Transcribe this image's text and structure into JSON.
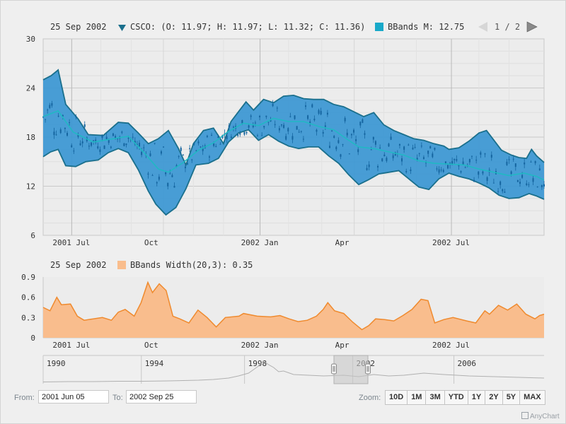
{
  "colors": {
    "band": "#3a96d2",
    "band_line": "#1a6f8c",
    "mid": "#20b8c4",
    "candle": "#1565a0",
    "width_fill": "#f9bd8d",
    "width_line": "#ef8a2e",
    "grid": "#d8d8d8",
    "nav_line": "#b0b0b0"
  },
  "pager": {
    "text": "1 / 2",
    "prev_icon": "triangle-left-icon",
    "next_icon": "triangle-right-icon"
  },
  "chart_data": [
    {
      "type": "candlestick",
      "legend": {
        "date": "25 Sep 2002",
        "ohlc": "CSCO: (O: 11.97; H: 11.97; L: 11.32; C: 11.36)",
        "bbands": "BBands M: 12.75"
      },
      "y_ticks": [
        "30",
        "24",
        "18",
        "12",
        "6"
      ],
      "ylim": [
        6,
        30
      ],
      "x_ticks": [
        "2001 Jul",
        "Oct",
        "2002 Jan",
        "Apr",
        "2002 Jul"
      ],
      "x_range": [
        "2001-06-05",
        "2002-09-25"
      ],
      "bbands_upper": [
        [
          0,
          25
        ],
        [
          0.016,
          25.5
        ],
        [
          0.03,
          26.2
        ],
        [
          0.045,
          22
        ],
        [
          0.07,
          20.2
        ],
        [
          0.09,
          18.3
        ],
        [
          0.12,
          18.2
        ],
        [
          0.15,
          19.8
        ],
        [
          0.17,
          19.7
        ],
        [
          0.19,
          18.5
        ],
        [
          0.21,
          17.2
        ],
        [
          0.23,
          17.8
        ],
        [
          0.25,
          18.8
        ],
        [
          0.27,
          16.6
        ],
        [
          0.285,
          14.6
        ],
        [
          0.3,
          17.2
        ],
        [
          0.32,
          18.8
        ],
        [
          0.34,
          19.1
        ],
        [
          0.36,
          17.2
        ],
        [
          0.375,
          19.9
        ],
        [
          0.39,
          21.1
        ],
        [
          0.405,
          22.3
        ],
        [
          0.42,
          21.3
        ],
        [
          0.44,
          22.6
        ],
        [
          0.46,
          22.2
        ],
        [
          0.48,
          23
        ],
        [
          0.5,
          23.1
        ],
        [
          0.52,
          22.7
        ],
        [
          0.54,
          22.6
        ],
        [
          0.56,
          22.6
        ],
        [
          0.58,
          22
        ],
        [
          0.6,
          21.7
        ],
        [
          0.62,
          21.1
        ],
        [
          0.64,
          20.5
        ],
        [
          0.66,
          21
        ],
        [
          0.68,
          19.5
        ],
        [
          0.7,
          18.8
        ],
        [
          0.72,
          18.3
        ],
        [
          0.74,
          17.8
        ],
        [
          0.76,
          17.6
        ],
        [
          0.78,
          17.2
        ],
        [
          0.8,
          16.9
        ],
        [
          0.81,
          16.5
        ],
        [
          0.83,
          16.7
        ],
        [
          0.85,
          17.5
        ],
        [
          0.87,
          18.5
        ],
        [
          0.885,
          18.8
        ],
        [
          0.9,
          17.6
        ],
        [
          0.915,
          16.4
        ],
        [
          0.935,
          15.8
        ],
        [
          0.95,
          15.5
        ],
        [
          0.965,
          15.4
        ],
        [
          0.975,
          16.5
        ],
        [
          0.985,
          15.7
        ],
        [
          1,
          14.9
        ]
      ],
      "bbands_lower": [
        [
          0,
          15.6
        ],
        [
          0.015,
          16.2
        ],
        [
          0.03,
          16.5
        ],
        [
          0.045,
          14.5
        ],
        [
          0.065,
          14.4
        ],
        [
          0.085,
          15
        ],
        [
          0.11,
          15.2
        ],
        [
          0.13,
          16.1
        ],
        [
          0.15,
          16.6
        ],
        [
          0.17,
          16.1
        ],
        [
          0.19,
          14
        ],
        [
          0.21,
          11.4
        ],
        [
          0.225,
          9.8
        ],
        [
          0.245,
          8.5
        ],
        [
          0.265,
          9.4
        ],
        [
          0.285,
          11.7
        ],
        [
          0.305,
          14.6
        ],
        [
          0.33,
          14.8
        ],
        [
          0.35,
          15.4
        ],
        [
          0.37,
          17.4
        ],
        [
          0.39,
          18.5
        ],
        [
          0.41,
          18.9
        ],
        [
          0.43,
          17.6
        ],
        [
          0.45,
          18.3
        ],
        [
          0.47,
          17.5
        ],
        [
          0.49,
          16.9
        ],
        [
          0.51,
          16.6
        ],
        [
          0.53,
          16.8
        ],
        [
          0.55,
          16.8
        ],
        [
          0.57,
          15.7
        ],
        [
          0.59,
          14.8
        ],
        [
          0.61,
          13.4
        ],
        [
          0.63,
          12.2
        ],
        [
          0.65,
          12.8
        ],
        [
          0.67,
          13.5
        ],
        [
          0.69,
          13.7
        ],
        [
          0.71,
          13.9
        ],
        [
          0.73,
          12.9
        ],
        [
          0.75,
          11.9
        ],
        [
          0.77,
          11.6
        ],
        [
          0.79,
          12.9
        ],
        [
          0.81,
          13.6
        ],
        [
          0.83,
          13.2
        ],
        [
          0.85,
          12.9
        ],
        [
          0.87,
          12.4
        ],
        [
          0.89,
          11.8
        ],
        [
          0.91,
          10.9
        ],
        [
          0.93,
          10.5
        ],
        [
          0.95,
          10.6
        ],
        [
          0.97,
          11.1
        ],
        [
          0.985,
          10.8
        ],
        [
          1,
          10.4
        ]
      ],
      "bbands_mid": [
        [
          0,
          20.5
        ],
        [
          0.03,
          21.2
        ],
        [
          0.06,
          18.6
        ],
        [
          0.1,
          17.4
        ],
        [
          0.14,
          17.8
        ],
        [
          0.17,
          18.1
        ],
        [
          0.2,
          16.2
        ],
        [
          0.23,
          14.1
        ],
        [
          0.25,
          13.7
        ],
        [
          0.28,
          14.9
        ],
        [
          0.31,
          16.4
        ],
        [
          0.34,
          17.3
        ],
        [
          0.37,
          18.7
        ],
        [
          0.4,
          19.7
        ],
        [
          0.43,
          19.4
        ],
        [
          0.46,
          20.3
        ],
        [
          0.49,
          19.9
        ],
        [
          0.52,
          19.9
        ],
        [
          0.55,
          19.3
        ],
        [
          0.58,
          18.9
        ],
        [
          0.61,
          17.6
        ],
        [
          0.63,
          16.8
        ],
        [
          0.66,
          16.6
        ],
        [
          0.69,
          16.2
        ],
        [
          0.72,
          15.8
        ],
        [
          0.75,
          15.1
        ],
        [
          0.78,
          14.8
        ],
        [
          0.81,
          14.7
        ],
        [
          0.84,
          14.6
        ],
        [
          0.87,
          14.1
        ],
        [
          0.9,
          13.7
        ],
        [
          0.93,
          13.3
        ],
        [
          0.96,
          13.6
        ],
        [
          0.985,
          13.2
        ],
        [
          1,
          12.75
        ]
      ]
    },
    {
      "type": "area",
      "legend": {
        "date": "25 Sep 2002",
        "label": "BBands Width(20,3): 0.35"
      },
      "y_ticks": [
        "0.9",
        "0.6",
        "0.3",
        "0"
      ],
      "ylim": [
        0,
        0.9
      ],
      "x_ticks": [
        "2001 Jul",
        "Oct",
        "2002 Jan",
        "Apr",
        "2002 Jul"
      ],
      "points": [
        [
          0,
          0.45
        ],
        [
          0.015,
          0.4
        ],
        [
          0.03,
          0.6
        ],
        [
          0.04,
          0.49
        ],
        [
          0.06,
          0.5
        ],
        [
          0.075,
          0.32
        ],
        [
          0.09,
          0.26
        ],
        [
          0.11,
          0.28
        ],
        [
          0.13,
          0.3
        ],
        [
          0.15,
          0.26
        ],
        [
          0.165,
          0.38
        ],
        [
          0.18,
          0.42
        ],
        [
          0.2,
          0.32
        ],
        [
          0.215,
          0.52
        ],
        [
          0.23,
          0.82
        ],
        [
          0.24,
          0.67
        ],
        [
          0.255,
          0.8
        ],
        [
          0.27,
          0.7
        ],
        [
          0.285,
          0.32
        ],
        [
          0.3,
          0.28
        ],
        [
          0.32,
          0.22
        ],
        [
          0.34,
          0.41
        ],
        [
          0.36,
          0.3
        ],
        [
          0.38,
          0.16
        ],
        [
          0.4,
          0.3
        ],
        [
          0.43,
          0.32
        ],
        [
          0.44,
          0.36
        ],
        [
          0.47,
          0.32
        ],
        [
          0.5,
          0.31
        ],
        [
          0.52,
          0.33
        ],
        [
          0.54,
          0.28
        ],
        [
          0.56,
          0.24
        ],
        [
          0.58,
          0.26
        ],
        [
          0.6,
          0.32
        ],
        [
          0.615,
          0.42
        ],
        [
          0.625,
          0.52
        ],
        [
          0.64,
          0.4
        ],
        [
          0.66,
          0.36
        ],
        [
          0.68,
          0.23
        ],
        [
          0.7,
          0.12
        ],
        [
          0.715,
          0.18
        ],
        [
          0.73,
          0.28
        ],
        [
          0.75,
          0.27
        ],
        [
          0.77,
          0.25
        ],
        [
          0.79,
          0.33
        ],
        [
          0.81,
          0.42
        ],
        [
          0.83,
          0.57
        ],
        [
          0.845,
          0.55
        ],
        [
          0.86,
          0.22
        ],
        [
          0.88,
          0.27
        ],
        [
          0.9,
          0.3
        ],
        [
          0.93,
          0.25
        ],
        [
          0.95,
          0.22
        ],
        [
          0.97,
          0.4
        ],
        [
          0.98,
          0.35
        ],
        [
          1,
          0.48
        ],
        [
          1.02,
          0.41
        ],
        [
          1.04,
          0.5
        ],
        [
          1.06,
          0.35
        ],
        [
          1.08,
          0.28
        ],
        [
          1.09,
          0.33
        ],
        [
          1.1,
          0.35
        ]
      ]
    },
    {
      "type": "line",
      "role": "navigator",
      "x_ticks": [
        "1990",
        "1994",
        "1998",
        "2002",
        "2006"
      ]
    }
  ],
  "controls": {
    "from_label": "From:",
    "from_value": "2001 Jun 05",
    "to_label": "To:",
    "to_value": "2002 Sep 25",
    "zoom_label": "Zoom:",
    "zoom_buttons": [
      "10D",
      "1M",
      "3M",
      "YTD",
      "1Y",
      "2Y",
      "5Y",
      "MAX"
    ]
  },
  "credit": "AnyChart"
}
